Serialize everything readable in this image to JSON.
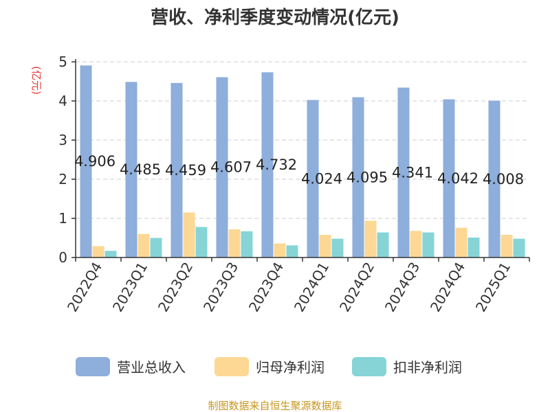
{
  "chart_data": {
    "type": "bar",
    "title": "营收、净利季度变动情况(亿元)",
    "unit": "(亿元)",
    "categories": [
      "2022Q4",
      "2023Q1",
      "2023Q2",
      "2023Q3",
      "2023Q4",
      "2024Q1",
      "2024Q2",
      "2024Q3",
      "2024Q4",
      "2025Q1"
    ],
    "series": [
      {
        "name": "营业总收入",
        "color": "#8eaedb",
        "values": [
          4.906,
          4.485,
          4.459,
          4.607,
          4.732,
          4.024,
          4.095,
          4.341,
          4.042,
          4.008
        ]
      },
      {
        "name": "归母净利润",
        "color": "#fdd894",
        "values": [
          0.29,
          0.6,
          1.15,
          0.72,
          0.36,
          0.58,
          0.94,
          0.68,
          0.76,
          0.58
        ]
      },
      {
        "name": "扣非净利润",
        "color": "#86d4d6",
        "values": [
          0.17,
          0.5,
          0.78,
          0.67,
          0.31,
          0.48,
          0.64,
          0.64,
          0.51,
          0.48
        ]
      }
    ],
    "data_labels": [
      "4.906",
      "4.485",
      "4.459",
      "4.607",
      "4.732",
      "4.024",
      "4.095",
      "4.341",
      "4.042",
      "4.008"
    ],
    "yticks": [
      "0",
      "1",
      "2",
      "3",
      "4",
      "5"
    ],
    "ylim": [
      0,
      5
    ],
    "grid": true,
    "legend_position": "bottom",
    "source": "制图数据来自恒生聚源数据库"
  }
}
